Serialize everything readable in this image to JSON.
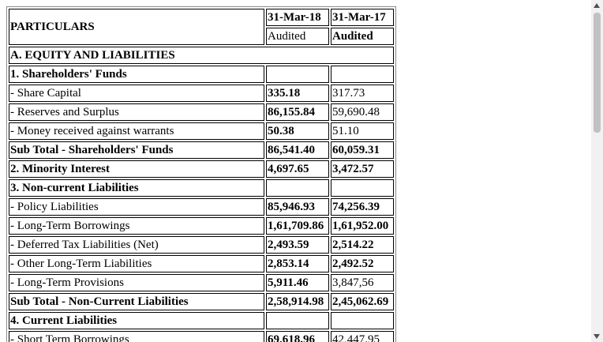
{
  "header": {
    "particulars": "PARTICULARS",
    "dates": [
      "31-Mar-18",
      "31-Mar-17"
    ],
    "status": [
      "Audited",
      "Audited"
    ]
  },
  "rows": [
    [
      "A. EQUITY AND LIABILITIES"
    ],
    [
      "1. Shareholders' Funds"
    ],
    [
      "- Share Capital",
      "335.18",
      "317.73"
    ],
    [
      "- Reserves and Surplus",
      "86,155.84",
      "59,690.48"
    ],
    [
      "- Money received against warrants",
      "50.38",
      "51.10"
    ],
    [
      "Sub Total - Shareholders' Funds",
      "86,541.40",
      "60,059.31"
    ],
    [
      "2. Minority Interest",
      "4,697.65",
      "3,472.57"
    ],
    [
      "3. Non-current Liabilities"
    ],
    [
      "- Policy Liabilities",
      "85,946.93",
      "74,256.39"
    ],
    [
      "- Long-Term Borrowings",
      "1,61,709.86",
      "1,61,952.00"
    ],
    [
      "- Deferred Tax Liabilities (Net)",
      "2,493.59",
      "2,514.22"
    ],
    [
      "- Other Long-Term Liabilities",
      "2,853.14",
      "2,492.52"
    ],
    [
      "- Long-Term Provisions",
      "5,911.46",
      "3,847,56"
    ],
    [
      "Sub Total - Non-Current Liabilities",
      "2,58,914.98",
      "2,45,062.69"
    ],
    [
      "4. Current Liabilities"
    ],
    [
      "- Short Term Borrowings",
      "69,618.96",
      "42,447.95"
    ]
  ]
}
